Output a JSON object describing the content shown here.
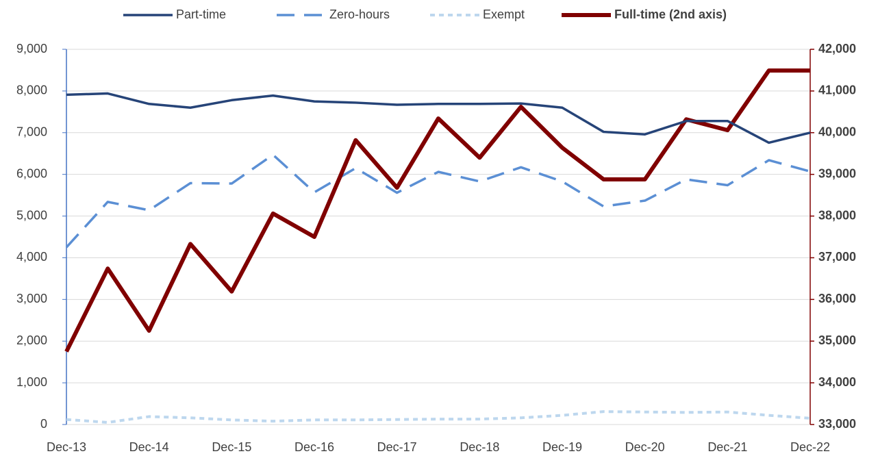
{
  "chart_data": {
    "type": "line",
    "categories": [
      "Dec-13",
      null,
      "Dec-14",
      null,
      "Dec-15",
      null,
      "Dec-16",
      null,
      "Dec-17",
      null,
      "Dec-18",
      null,
      "Dec-19",
      null,
      "Dec-20",
      null,
      "Dec-21",
      null,
      "Dec-22"
    ],
    "series": [
      {
        "name": "Part-time",
        "color": "#264478",
        "dash": "solid",
        "values": [
          7910,
          7940,
          7690,
          7600,
          7780,
          7890,
          7750,
          7720,
          7670,
          7690,
          7690,
          7700,
          7600,
          7020,
          6960,
          7280,
          7280,
          6760,
          7000
        ]
      },
      {
        "name": "Zero-hours",
        "color": "#5b8fd4",
        "dash": "dashed",
        "values": [
          4250,
          5340,
          5140,
          5790,
          5780,
          6470,
          5570,
          6150,
          5560,
          6060,
          5830,
          6170,
          5830,
          5230,
          5370,
          5880,
          5740,
          6340,
          6070
        ]
      },
      {
        "name": "Exempt",
        "color": "#bdd7ee",
        "dash": "dashed",
        "values": [
          120,
          50,
          190,
          160,
          110,
          80,
          110,
          110,
          120,
          130,
          130,
          160,
          220,
          310,
          300,
          290,
          300,
          220,
          150
        ]
      },
      {
        "name": "Full-time (2nd axis)",
        "color": "#800000",
        "dash": "solid",
        "axis": "y2",
        "values": [
          34750,
          36740,
          35250,
          37330,
          36190,
          38060,
          37500,
          39820,
          38680,
          40340,
          39400,
          40620,
          39640,
          38880,
          38880,
          40320,
          40060,
          41490,
          41490
        ]
      }
    ],
    "ylim": [
      0,
      9000
    ],
    "yticks": [
      0,
      {
        "value": 1000,
        "label": "1,000"
      },
      {
        "value": 2000,
        "label": "2,000"
      },
      {
        "value": 3000,
        "label": "3,000"
      },
      {
        "value": 4000,
        "label": "4,000"
      },
      {
        "value": 5000,
        "label": "5,000"
      },
      {
        "value": 6000,
        "label": "6,000"
      },
      {
        "value": 7000,
        "label": "7,000"
      },
      {
        "value": 8000,
        "label": "8,000"
      },
      {
        "value": 9000,
        "label": "9,000"
      }
    ],
    "y2lim": [
      33000,
      42000
    ],
    "y2ticks": [
      {
        "value": 33000,
        "label": "33,000"
      },
      {
        "value": 34000,
        "label": "34,000"
      },
      {
        "value": 35000,
        "label": "35,000"
      },
      {
        "value": 36000,
        "label": "36,000"
      },
      {
        "value": 37000,
        "label": "37,000"
      },
      {
        "value": 38000,
        "label": "38,000"
      },
      {
        "value": 39000,
        "label": "39,000"
      },
      {
        "value": 40000,
        "label": "40,000"
      },
      {
        "value": 41000,
        "label": "41,000"
      },
      {
        "value": 42000,
        "label": "42,000"
      }
    ],
    "grid": true,
    "legend": "top"
  }
}
